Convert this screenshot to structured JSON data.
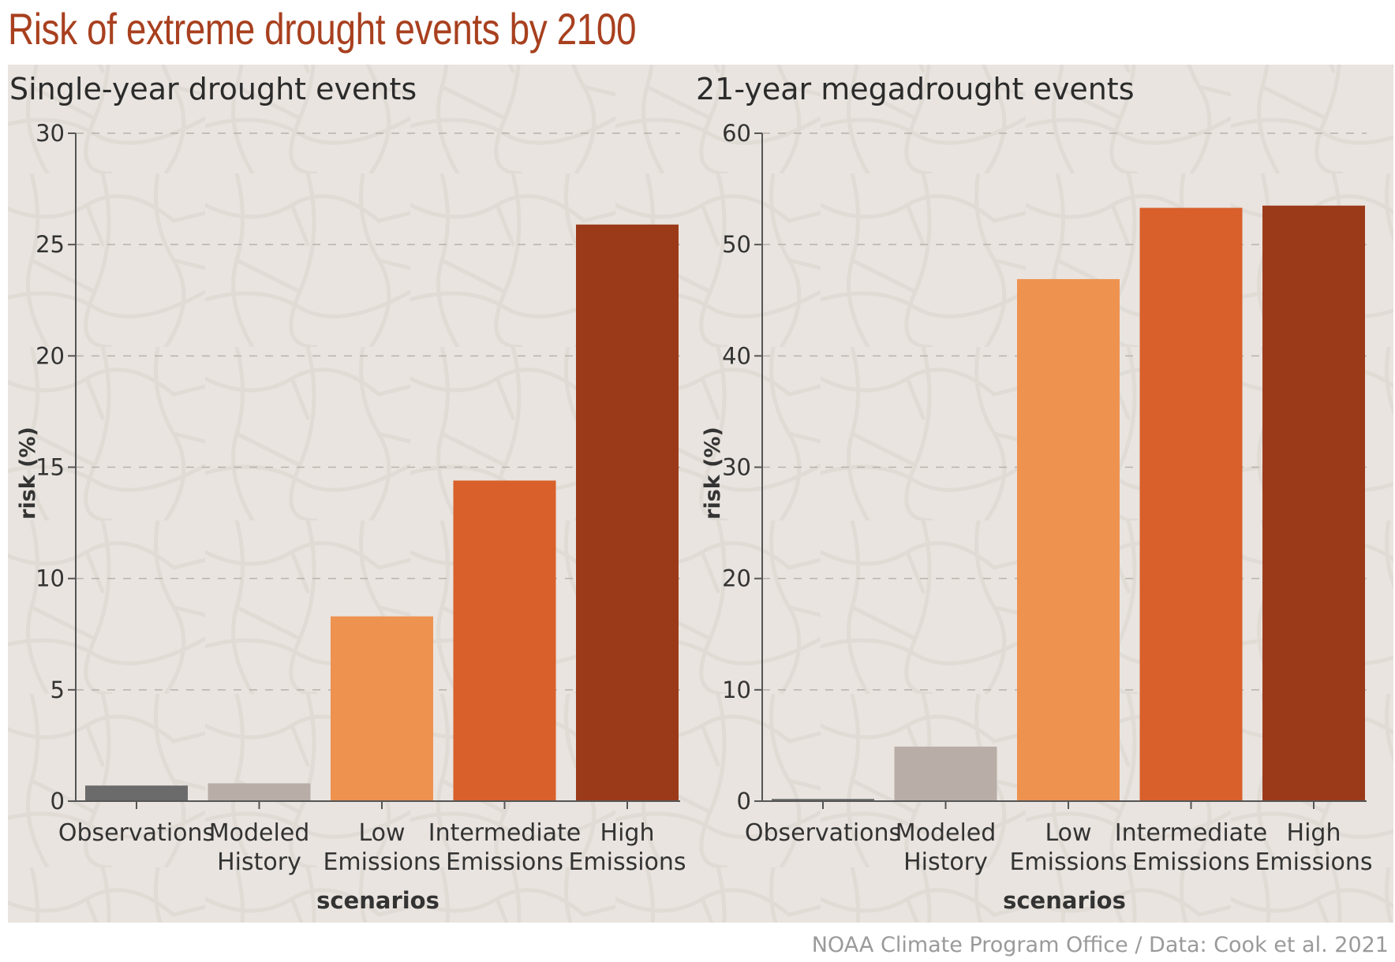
{
  "title": "Risk of extreme drought events by 2100",
  "credit": "NOAA Climate Program Office / Data: Cook et al. 2021",
  "colors": {
    "title": "#a8401f",
    "background": "#e9e4df",
    "observations": "#6b6b6b",
    "modeled_history": "#b9aea7",
    "low_emissions": "#ee9250",
    "intermediate_emissions": "#d95f2b",
    "high_emissions": "#9b3a19"
  },
  "chart_data": [
    {
      "type": "bar",
      "title": "Single-year drought events",
      "xlabel": "scenarios",
      "ylabel": "risk (%)",
      "ylim": [
        0,
        30
      ],
      "yticks": [
        0,
        5,
        10,
        15,
        20,
        25,
        30
      ],
      "grid": "horizontal dashed",
      "categories": [
        [
          "Observations"
        ],
        [
          "Modeled",
          "History"
        ],
        [
          "Low",
          "Emissions"
        ],
        [
          "Intermediate",
          "Emissions"
        ],
        [
          "High",
          "Emissions"
        ]
      ],
      "values": [
        0.7,
        0.8,
        8.3,
        14.4,
        25.9
      ]
    },
    {
      "type": "bar",
      "title": "21-year megadrought events",
      "xlabel": "scenarios",
      "ylabel": "risk (%)",
      "ylim": [
        0,
        60
      ],
      "yticks": [
        0,
        10,
        20,
        30,
        40,
        50,
        60
      ],
      "grid": "horizontal dashed",
      "categories": [
        [
          "Observations"
        ],
        [
          "Modeled",
          "History"
        ],
        [
          "Low",
          "Emissions"
        ],
        [
          "Intermediate",
          "Emissions"
        ],
        [
          "High",
          "Emissions"
        ]
      ],
      "values": [
        0.2,
        4.9,
        46.9,
        53.3,
        53.5
      ]
    }
  ]
}
